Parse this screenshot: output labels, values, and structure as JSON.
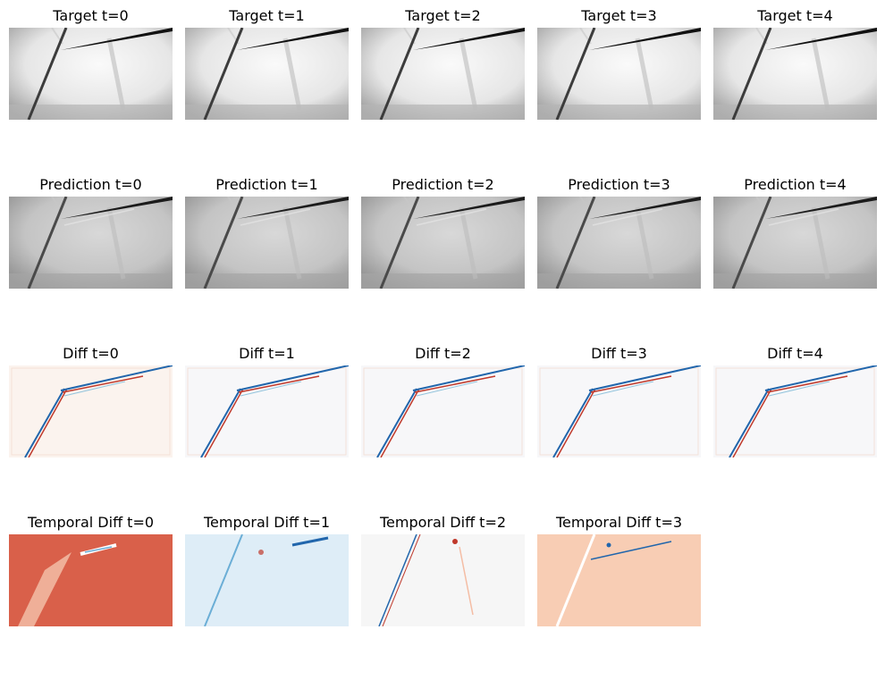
{
  "rows": [
    {
      "kind": "target",
      "panels": [
        {
          "title": "Target t=0"
        },
        {
          "title": "Target t=1"
        },
        {
          "title": "Target t=2"
        },
        {
          "title": "Target t=3"
        },
        {
          "title": "Target t=4"
        }
      ]
    },
    {
      "kind": "prediction",
      "panels": [
        {
          "title": "Prediction t=0"
        },
        {
          "title": "Prediction t=1"
        },
        {
          "title": "Prediction t=2"
        },
        {
          "title": "Prediction t=3"
        },
        {
          "title": "Prediction t=4"
        }
      ]
    },
    {
      "kind": "diff",
      "panels": [
        {
          "title": "Diff t=0"
        },
        {
          "title": "Diff t=1"
        },
        {
          "title": "Diff t=2"
        },
        {
          "title": "Diff t=3"
        },
        {
          "title": "Diff t=4"
        }
      ]
    },
    {
      "kind": "temporal",
      "panels": [
        {
          "title": "Temporal Diff t=0",
          "tint": "#d9604a"
        },
        {
          "title": "Temporal Diff t=1",
          "tint": "#deedf7"
        },
        {
          "title": "Temporal Diff t=2",
          "tint": "#f6f6f6"
        },
        {
          "title": "Temporal Diff t=3",
          "tint": "#f8cdb4"
        }
      ]
    }
  ],
  "colors": {
    "target_bg": "#e6e6e6",
    "prediction_bg": "#c4c4c4",
    "diff_bg": "#fbf3ee",
    "red": "#c0392b",
    "blue": "#2166ac"
  }
}
